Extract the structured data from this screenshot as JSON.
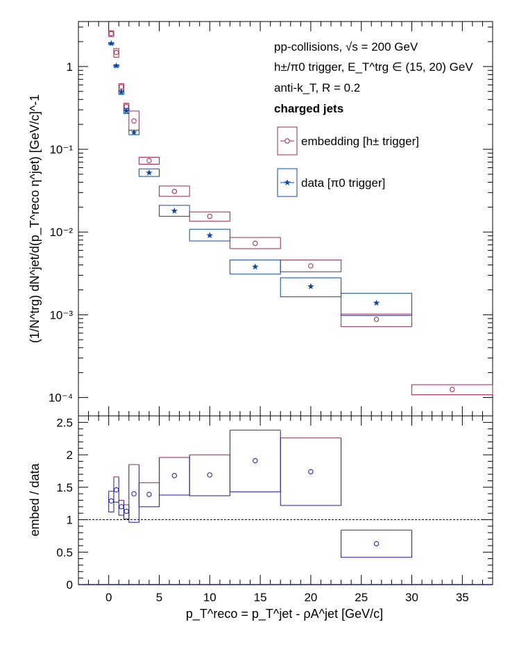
{
  "chart_data": [
    {
      "type": "scatter",
      "title": "",
      "ylabel": "(1/N^trg) dN^jet/d(p_T^reco η^jet) [GeV/c]^-1",
      "ylog": true,
      "ylim": [
        6e-05,
        3.5
      ],
      "xlim": [
        -3,
        38
      ],
      "ytick_labels": [
        "10⁻⁴",
        "10⁻³",
        "10⁻²",
        "10⁻¹",
        "1"
      ],
      "annotations": [
        "pp-collisions, √s = 200 GeV",
        "h±/π0 trigger, E_T^trg ∈ (15, 20) GeV",
        "anti-k_T, R = 0.2",
        "charged jets"
      ],
      "legend_location": "upper-right",
      "series": [
        {
          "name": "embedding [h± trigger]",
          "color": "#a5224e",
          "marker": "open-circle",
          "bins": [
            {
              "x": 0.25,
              "xlo": 0.0,
              "xhi": 0.5,
              "y": 2.5,
              "syslo": 2.3,
              "syshi": 2.7
            },
            {
              "x": 0.75,
              "xlo": 0.5,
              "xhi": 1.0,
              "y": 1.48,
              "syslo": 1.3,
              "syshi": 1.65
            },
            {
              "x": 1.25,
              "xlo": 1.0,
              "xhi": 1.5,
              "y": 0.57,
              "syslo": 0.52,
              "syshi": 0.62
            },
            {
              "x": 1.75,
              "xlo": 1.5,
              "xhi": 2.0,
              "y": 0.33,
              "syslo": 0.3,
              "syshi": 0.36
            },
            {
              "x": 2.5,
              "xlo": 2.0,
              "xhi": 3.0,
              "y": 0.22,
              "syslo": 0.17,
              "syshi": 0.29
            },
            {
              "x": 4.0,
              "xlo": 3.0,
              "xhi": 5.0,
              "y": 0.073,
              "syslo": 0.066,
              "syshi": 0.08
            },
            {
              "x": 6.5,
              "xlo": 5.0,
              "xhi": 8.0,
              "y": 0.031,
              "syslo": 0.027,
              "syshi": 0.036
            },
            {
              "x": 10.0,
              "xlo": 8.0,
              "xhi": 12.0,
              "y": 0.0155,
              "syslo": 0.0135,
              "syshi": 0.0175
            },
            {
              "x": 14.5,
              "xlo": 12.0,
              "xhi": 17.0,
              "y": 0.0073,
              "syslo": 0.0063,
              "syshi": 0.0086
            },
            {
              "x": 20.0,
              "xlo": 17.0,
              "xhi": 23.0,
              "y": 0.0039,
              "syslo": 0.0033,
              "syshi": 0.0046
            },
            {
              "x": 26.5,
              "xlo": 23.0,
              "xhi": 30.0,
              "y": 0.00088,
              "syslo": 0.00072,
              "syshi": 0.00102
            },
            {
              "x": 34.0,
              "xlo": 30.0,
              "xhi": 38.0,
              "y": 0.000125,
              "syslo": 0.000108,
              "syshi": 0.000143
            }
          ]
        },
        {
          "name": "data [π0 trigger]",
          "color": "#0a47a4",
          "marker": "filled-star",
          "bins": [
            {
              "x": 0.25,
              "xlo": 0.0,
              "xhi": 0.5,
              "y": 1.9,
              "syslo": 1.85,
              "syshi": 1.95
            },
            {
              "x": 0.75,
              "xlo": 0.5,
              "xhi": 1.0,
              "y": 1.02,
              "syslo": 0.99,
              "syshi": 1.05
            },
            {
              "x": 1.25,
              "xlo": 1.0,
              "xhi": 1.5,
              "y": 0.49,
              "syslo": 0.46,
              "syshi": 0.52
            },
            {
              "x": 1.75,
              "xlo": 1.5,
              "xhi": 2.0,
              "y": 0.29,
              "syslo": 0.27,
              "syshi": 0.31
            },
            {
              "x": 2.5,
              "xlo": 2.0,
              "xhi": 3.0,
              "y": 0.16,
              "syslo": 0.15,
              "syshi": 0.17
            },
            {
              "x": 4.0,
              "xlo": 3.0,
              "xhi": 5.0,
              "y": 0.052,
              "syslo": 0.047,
              "syshi": 0.058
            },
            {
              "x": 6.5,
              "xlo": 5.0,
              "xhi": 8.0,
              "y": 0.018,
              "syslo": 0.0155,
              "syshi": 0.021
            },
            {
              "x": 10.0,
              "xlo": 8.0,
              "xhi": 12.0,
              "y": 0.0091,
              "syslo": 0.0078,
              "syshi": 0.0108
            },
            {
              "x": 14.5,
              "xlo": 12.0,
              "xhi": 17.0,
              "y": 0.0038,
              "syslo": 0.0031,
              "syshi": 0.0046
            },
            {
              "x": 20.0,
              "xlo": 17.0,
              "xhi": 23.0,
              "y": 0.0022,
              "syslo": 0.00165,
              "syshi": 0.0028
            },
            {
              "x": 26.5,
              "xlo": 23.0,
              "xhi": 30.0,
              "y": 0.00139,
              "syslo": 0.00098,
              "syshi": 0.00182
            }
          ]
        }
      ]
    },
    {
      "type": "scatter",
      "title": "",
      "xlabel": "p_T^reco = p_T^jet - ρA^jet [GeV/c]",
      "ylabel": "embed / data",
      "xlim": [
        -3,
        38
      ],
      "ylim": [
        0,
        2.6
      ],
      "xticks": [
        0,
        5,
        10,
        15,
        20,
        25,
        30,
        35
      ],
      "yticks": [
        0,
        0.5,
        1,
        1.5,
        2,
        2.5
      ],
      "ytick_labels": [
        "0",
        "0.5",
        "1",
        "1.5",
        "2",
        "2.5"
      ],
      "reference_line": 1,
      "series": [
        {
          "name": "",
          "color": "#1c15a8",
          "box_color_upper": "#8e1f52",
          "marker": "open-circle",
          "bins": [
            {
              "x": 0.25,
              "xlo": 0.0,
              "xhi": 0.5,
              "y": 1.29,
              "syslo": 1.12,
              "syshi": 1.44
            },
            {
              "x": 0.75,
              "xlo": 0.5,
              "xhi": 1.0,
              "y": 1.46,
              "syslo": 1.27,
              "syshi": 1.66
            },
            {
              "x": 1.25,
              "xlo": 1.0,
              "xhi": 1.5,
              "y": 1.2,
              "syslo": 1.07,
              "syshi": 1.3
            },
            {
              "x": 1.75,
              "xlo": 1.5,
              "xhi": 2.0,
              "y": 1.13,
              "syslo": 1.01,
              "syshi": 1.23
            },
            {
              "x": 2.5,
              "xlo": 2.0,
              "xhi": 3.0,
              "y": 1.4,
              "syslo": 0.96,
              "syshi": 1.85
            },
            {
              "x": 4.0,
              "xlo": 3.0,
              "xhi": 5.0,
              "y": 1.39,
              "syslo": 1.2,
              "syshi": 1.57
            },
            {
              "x": 6.5,
              "xlo": 5.0,
              "xhi": 8.0,
              "y": 1.68,
              "syslo": 1.38,
              "syshi": 1.96
            },
            {
              "x": 10.0,
              "xlo": 8.0,
              "xhi": 12.0,
              "y": 1.69,
              "syslo": 1.37,
              "syshi": 2.0
            },
            {
              "x": 14.5,
              "xlo": 12.0,
              "xhi": 17.0,
              "y": 1.91,
              "syslo": 1.43,
              "syshi": 2.38
            },
            {
              "x": 20.0,
              "xlo": 17.0,
              "xhi": 23.0,
              "y": 1.74,
              "syslo": 1.22,
              "syshi": 2.26
            },
            {
              "x": 26.5,
              "xlo": 23.0,
              "xhi": 30.0,
              "y": 0.63,
              "syslo": 0.42,
              "syshi": 0.84
            }
          ]
        }
      ]
    }
  ]
}
